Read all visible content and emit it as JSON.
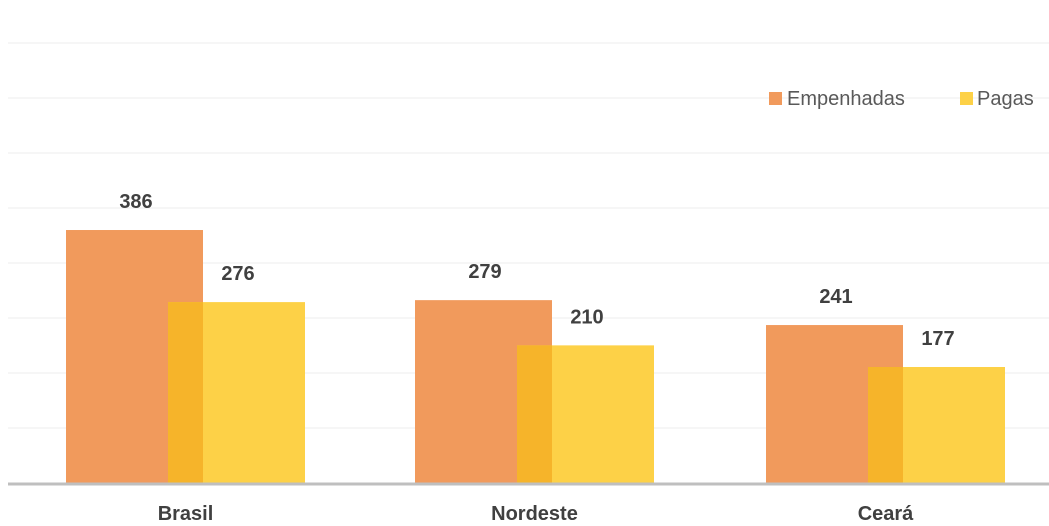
{
  "chart_data": {
    "type": "bar",
    "categories": [
      "Brasil",
      "Nordeste",
      "Ceará"
    ],
    "series": [
      {
        "name": "Empenhadas",
        "values": [
          386,
          279,
          241
        ],
        "color": "#F19A5C"
      },
      {
        "name": "Pagas",
        "values": [
          276,
          210,
          177
        ],
        "color": "#FDD147"
      }
    ],
    "overlap_color": "#F6B42A",
    "ylim": [
      0,
      420
    ],
    "grid": true,
    "legend_position": "top-right",
    "title": "",
    "xlabel": "",
    "ylabel": ""
  }
}
